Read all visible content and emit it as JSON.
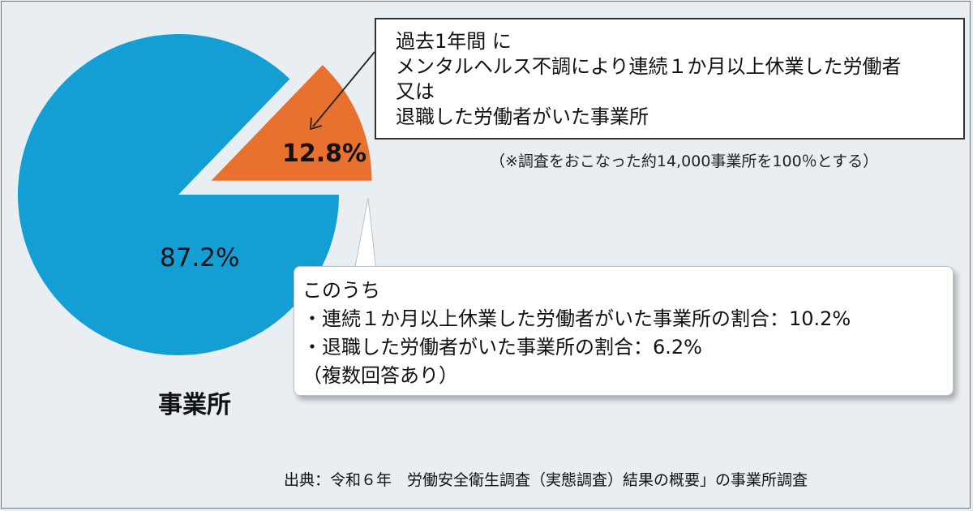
{
  "chart_data": {
    "type": "pie",
    "title": "",
    "category_label": "事業所",
    "slices": [
      {
        "label": "87.2%",
        "value": 87.2,
        "color": "#139fd4",
        "exploded": false
      },
      {
        "label": "12.8%",
        "value": 12.8,
        "color": "#e97130",
        "exploded": true
      }
    ],
    "annotations": {
      "callout_lines": [
        "過去1年間 に",
        "メンタルヘルス不調により連続１か月以上休業した労働者",
        "又は",
        "退職した労働者がいた事業所"
      ],
      "note": "（※調査をおこなった約14,000事業所を100％とする）",
      "detail_lines": [
        "このうち",
        "・連続１か月以上休業した労働者がいた事業所の割合：10.2%",
        "・退職した労働者がいた事業所の割合：6.2%",
        "（複数回答あり）"
      ]
    },
    "source": "出典：令和６年　労働安全衛生調査（実態調査）結果の概要」の事業所調査"
  }
}
